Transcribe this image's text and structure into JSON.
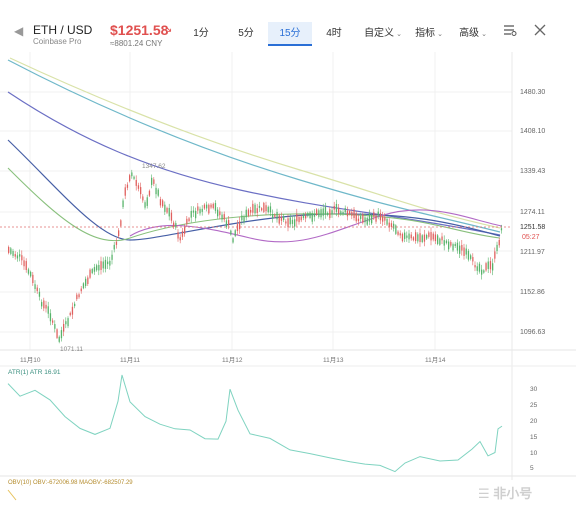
{
  "header": {
    "back_icon": "chevron-left-icon",
    "pair": "ETH / USD",
    "exchange": "Coinbase Pro",
    "price": "$1251.58",
    "cny": "≈8801.24 CNY",
    "intervals": [
      "1分",
      "5分",
      "15分",
      "4时"
    ],
    "active_interval": "15分",
    "menus": [
      "自定义",
      "指标",
      "高级"
    ],
    "settings_icon": "chart-settings-icon",
    "close_icon": "close-icon"
  },
  "main_chart": {
    "price_ticks": [
      "1480.30",
      "1408.10",
      "1339.43",
      "1274.11",
      "1211.97",
      "1152.86",
      "1096.63"
    ],
    "current_price_label": "1251.58",
    "countdown_label": "05:27",
    "high_label": "1347.62",
    "low_label": "1071.11",
    "date_labels": [
      "11月10",
      "11月11",
      "11月12",
      "11月13",
      "11月14"
    ]
  },
  "atr_panel": {
    "label": "ATR(1) ATR 16.91",
    "ticks": [
      "30",
      "25",
      "20",
      "15",
      "10",
      "5"
    ]
  },
  "obv_panel": {
    "label": "OBV(10) OBV:-672006.98 MAOBV:-682507.29"
  },
  "watermark": "非小号",
  "colors": {
    "price_up": "#e0504f",
    "accent": "#2a6fd6",
    "candles": "#4caf50",
    "atr_line": "#7fd3c0"
  }
}
